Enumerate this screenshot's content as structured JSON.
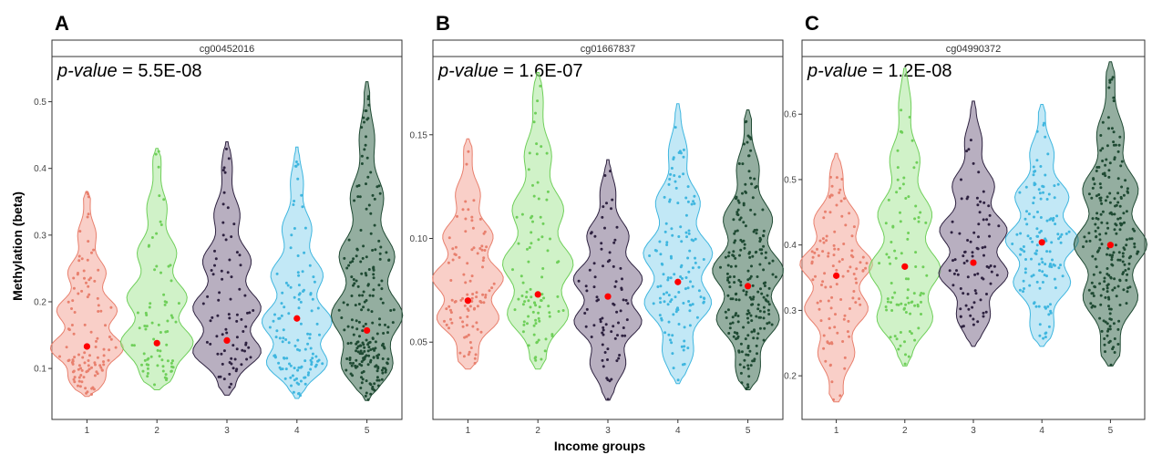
{
  "figure": {
    "ylabel": "Methylation (beta)",
    "xlabel": "Income groups"
  },
  "chart_data": [
    {
      "type": "violin",
      "panel_label": "A",
      "strip_title": "cg00452016",
      "pvalue_label": "p-value",
      "pvalue_value": " = 5.5E-08",
      "categories": [
        "1",
        "2",
        "3",
        "4",
        "5"
      ],
      "ylim": [
        0.04,
        0.55
      ],
      "yticks": [
        0.1,
        0.2,
        0.3,
        0.4,
        0.5
      ],
      "ytick_labels": [
        "0.1",
        "0.2",
        "0.3",
        "0.4",
        "0.5"
      ],
      "colors": [
        "#f4a89b",
        "#a9e89b",
        "#7d6d8c",
        "#8fd6ee",
        "#3d6b52"
      ],
      "dot_colors": [
        "#e8806e",
        "#6fcf5a",
        "#2e2240",
        "#3fb6df",
        "#1f4a33"
      ],
      "mean_color": "#ff0000",
      "series": [
        {
          "name": "1",
          "min": 0.058,
          "max": 0.365,
          "mean": 0.133,
          "mode": 0.12,
          "n": 110
        },
        {
          "name": "2",
          "min": 0.068,
          "max": 0.43,
          "mean": 0.138,
          "mode": 0.12,
          "n": 75
        },
        {
          "name": "3",
          "min": 0.06,
          "max": 0.44,
          "mean": 0.142,
          "mode": 0.14,
          "n": 80
        },
        {
          "name": "4",
          "min": 0.055,
          "max": 0.432,
          "mean": 0.175,
          "mode": 0.13,
          "n": 120
        },
        {
          "name": "5",
          "min": 0.052,
          "max": 0.53,
          "mean": 0.157,
          "mode": 0.14,
          "n": 230
        }
      ]
    },
    {
      "type": "violin",
      "panel_label": "B",
      "strip_title": "cg01667837",
      "pvalue_label": "p-value",
      "pvalue_value": " = 1.6E-07",
      "categories": [
        "1",
        "2",
        "3",
        "4",
        "5"
      ],
      "ylim": [
        0.018,
        0.182
      ],
      "yticks": [
        0.05,
        0.1,
        0.15
      ],
      "ytick_labels": [
        "0.05",
        "0.10",
        "0.15"
      ],
      "colors": [
        "#f4a89b",
        "#a9e89b",
        "#7d6d8c",
        "#8fd6ee",
        "#3d6b52"
      ],
      "dot_colors": [
        "#e8806e",
        "#6fcf5a",
        "#2e2240",
        "#3fb6df",
        "#1f4a33"
      ],
      "mean_color": "#ff0000",
      "series": [
        {
          "name": "1",
          "min": 0.037,
          "max": 0.148,
          "mean": 0.07,
          "mode": 0.072,
          "n": 100
        },
        {
          "name": "2",
          "min": 0.037,
          "max": 0.18,
          "mean": 0.073,
          "mode": 0.075,
          "n": 90
        },
        {
          "name": "3",
          "min": 0.022,
          "max": 0.138,
          "mean": 0.072,
          "mode": 0.07,
          "n": 80
        },
        {
          "name": "4",
          "min": 0.03,
          "max": 0.165,
          "mean": 0.079,
          "mode": 0.08,
          "n": 130
        },
        {
          "name": "5",
          "min": 0.027,
          "max": 0.162,
          "mean": 0.077,
          "mode": 0.075,
          "n": 220
        }
      ]
    },
    {
      "type": "violin",
      "panel_label": "C",
      "strip_title": "cg04990372",
      "pvalue_label": "p-value",
      "pvalue_value": " = 1.2E-08",
      "categories": [
        "1",
        "2",
        "3",
        "4",
        "5"
      ],
      "ylim": [
        0.15,
        0.67
      ],
      "yticks": [
        0.2,
        0.3,
        0.4,
        0.5,
        0.6
      ],
      "ytick_labels": [
        "0.2",
        "0.3",
        "0.4",
        "0.5",
        "0.6"
      ],
      "colors": [
        "#f4a89b",
        "#a9e89b",
        "#7d6d8c",
        "#8fd6ee",
        "#3d6b52"
      ],
      "dot_colors": [
        "#e8806e",
        "#6fcf5a",
        "#2e2240",
        "#3fb6df",
        "#1f4a33"
      ],
      "mean_color": "#ff0000",
      "series": [
        {
          "name": "1",
          "min": 0.16,
          "max": 0.54,
          "mean": 0.353,
          "mode": 0.36,
          "n": 110
        },
        {
          "name": "2",
          "min": 0.215,
          "max": 0.67,
          "mean": 0.367,
          "mode": 0.33,
          "n": 90
        },
        {
          "name": "3",
          "min": 0.245,
          "max": 0.62,
          "mean": 0.373,
          "mode": 0.38,
          "n": 85
        },
        {
          "name": "4",
          "min": 0.245,
          "max": 0.615,
          "mean": 0.404,
          "mode": 0.4,
          "n": 130
        },
        {
          "name": "5",
          "min": 0.215,
          "max": 0.68,
          "mean": 0.4,
          "mode": 0.39,
          "n": 230
        }
      ]
    }
  ]
}
